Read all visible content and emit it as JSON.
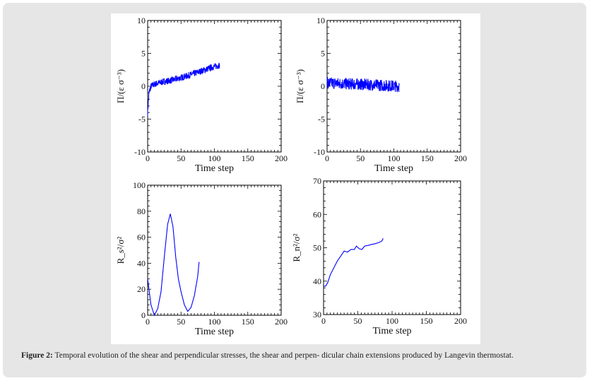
{
  "caption": {
    "label": "Figure 2:",
    "text": "Temporal evolution of the shear and perpendicular stresses, the shear and perpen- dicular chain extensions produced by Langevin thermostat."
  },
  "colors": {
    "series": "#0000ff",
    "panel": "#e6e6e6"
  },
  "chart_data": [
    {
      "type": "line",
      "id": "shear-stress",
      "xlabel": "Time step",
      "ylabel": "Π/(ε σ⁻³)",
      "xlim": [
        0,
        200
      ],
      "ylim": [
        -10,
        10
      ],
      "xticks": [
        "0",
        "50",
        "100",
        "150",
        "200"
      ],
      "yticks": [
        "-10",
        "-5",
        "0",
        "5",
        "10"
      ],
      "series": [
        {
          "name": "shear stress",
          "noise": 0.5,
          "x": [
            0,
            2,
            5,
            10,
            20,
            40,
            60,
            80,
            100,
            108
          ],
          "y": [
            -4,
            -1,
            0,
            0.3,
            0.6,
            1.0,
            1.6,
            2.3,
            3.0,
            3.2
          ]
        }
      ]
    },
    {
      "type": "line",
      "id": "perpendicular-stress",
      "xlabel": "Time step",
      "ylabel": "Π/(ε σ⁻³)",
      "xlim": [
        0,
        200
      ],
      "ylim": [
        -10,
        10
      ],
      "xticks": [
        "0",
        "50",
        "100",
        "150",
        "200"
      ],
      "yticks": [
        "-10",
        "-5",
        "0",
        "5",
        "10"
      ],
      "series": [
        {
          "name": "perpendicular stress",
          "noise": 0.9,
          "x": [
            0,
            50,
            108
          ],
          "y": [
            0.5,
            0.3,
            0.0
          ]
        }
      ]
    },
    {
      "type": "line",
      "id": "shear-extension",
      "xlabel": "Time step",
      "ylabel": "R_s²/σ²",
      "xlim": [
        0,
        200
      ],
      "ylim": [
        0,
        100
      ],
      "xticks": [
        "0",
        "50",
        "100",
        "150",
        "200"
      ],
      "yticks": [
        "0",
        "20",
        "40",
        "60",
        "80",
        "100"
      ],
      "series": [
        {
          "name": "Rs^2",
          "noise": 0,
          "x": [
            0,
            5,
            10,
            15,
            20,
            25,
            30,
            34,
            38,
            42,
            46,
            50,
            55,
            60,
            65,
            70,
            75,
            77
          ],
          "y": [
            28,
            8,
            0,
            5,
            18,
            45,
            70,
            78,
            68,
            45,
            28,
            18,
            8,
            3,
            6,
            15,
            30,
            41
          ]
        }
      ]
    },
    {
      "type": "line",
      "id": "perpendicular-extension",
      "xlabel": "Time step",
      "ylabel": "R_n²/σ²",
      "xlim": [
        0,
        200
      ],
      "ylim": [
        30,
        70
      ],
      "xticks": [
        "0",
        "50",
        "100",
        "150",
        "200"
      ],
      "yticks": [
        "30",
        "40",
        "50",
        "60",
        "70"
      ],
      "series": [
        {
          "name": "Rn^2",
          "noise": 0,
          "x": [
            0,
            3,
            6,
            10,
            15,
            20,
            25,
            30,
            35,
            40,
            45,
            48,
            52,
            56,
            60,
            65,
            70,
            75,
            80,
            85,
            87
          ],
          "y": [
            38.5,
            38.5,
            39.5,
            42,
            44,
            46,
            47.5,
            49,
            48.7,
            49.5,
            49.5,
            50.5,
            49.7,
            49.5,
            50.5,
            50.7,
            51,
            51.2,
            51.5,
            52,
            52.8
          ]
        }
      ]
    }
  ]
}
